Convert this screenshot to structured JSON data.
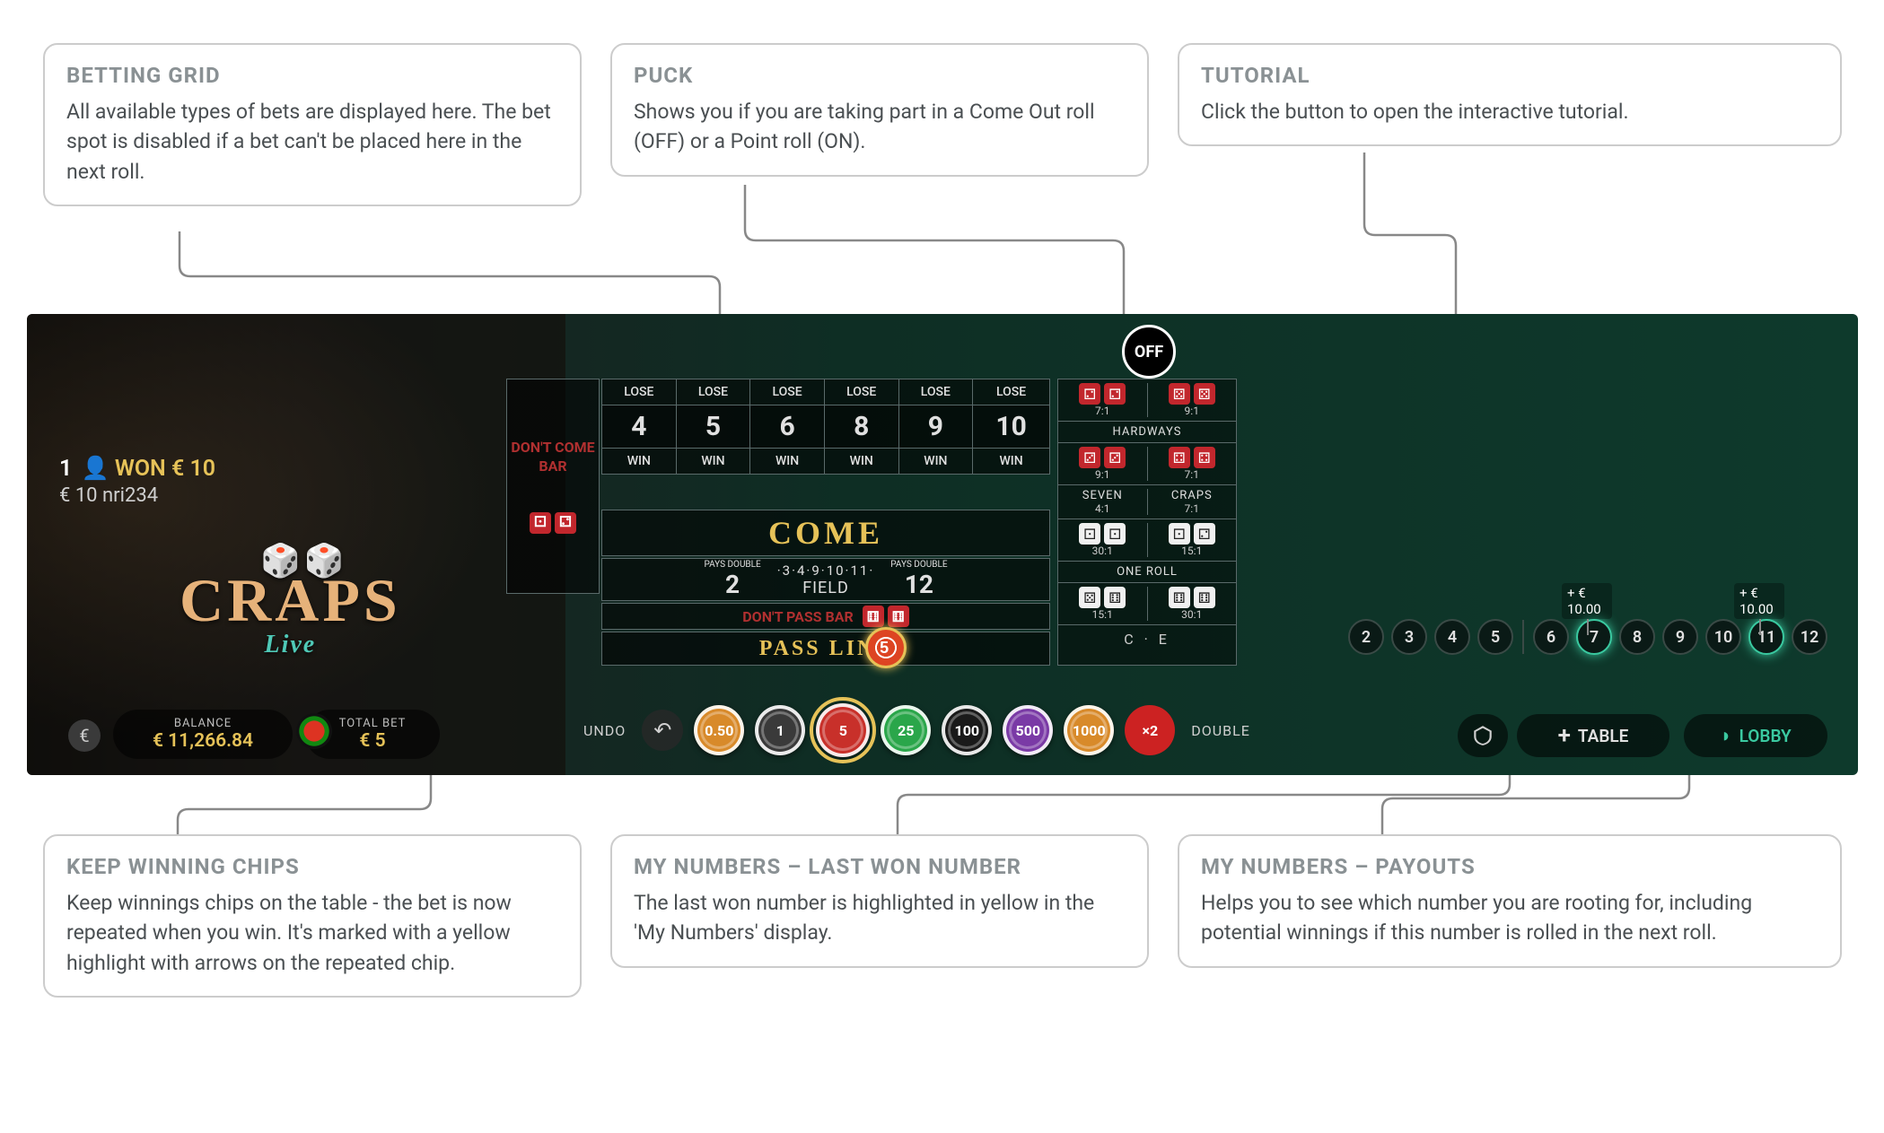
{
  "callouts": {
    "betting_grid": {
      "title": "BETTING GRID",
      "body": "All available types of bets are displayed here. The bet spot is disabled if a bet can't be placed here in the next roll."
    },
    "puck": {
      "title": "PUCK",
      "body": "Shows you if you are taking part in a Come Out roll (OFF) or a Point roll (ON)."
    },
    "tutorial": {
      "title": "TUTORIAL",
      "body": "Click the button to open the interactive tutorial."
    },
    "keep_winning": {
      "title": "KEEP WINNING CHIPS",
      "body": "Keep winnings chips on the table - the bet is now repeated when you win. It's marked with a yellow highlight with arrows on the repeated chip."
    },
    "last_won": {
      "title": "MY NUMBERS – LAST WON NUMBER",
      "body": "The last won number is highlighted in yellow in the 'My Numbers' display."
    },
    "payouts": {
      "title": "MY NUMBERS – PAYOUTS",
      "body": "Helps you to see which number you are rooting for, including potential winnings if this number is rolled in the next roll."
    }
  },
  "game": {
    "win_text": "WON € 10",
    "win_count": "1",
    "player_id": "€ 10 nri234",
    "logo": "CRAPS",
    "logo_sub": "Live",
    "balance_label": "BALANCE",
    "balance_value": "€ 11,266.84",
    "totalbet_label": "TOTAL BET",
    "totalbet_value": "€ 5",
    "puck_state": "OFF",
    "undo_label": "UNDO",
    "double_label": "DOUBLE",
    "double_x": "×2",
    "table_btn": "TABLE",
    "lobby_btn": "LOBBY",
    "dont_come": "DON'T COME BAR",
    "come_label": "COME",
    "field_nums": "·3·4·9·10·11·",
    "field_label": "FIELD",
    "pays_double": "PAYS DOUBLE",
    "field_2": "2",
    "field_12": "12",
    "dont_pass": "DON'T PASS BAR",
    "pass_line": "PASS LINE",
    "pass_chip": "5",
    "grid": {
      "numbers": [
        "4",
        "5",
        "6",
        "8",
        "9",
        "10"
      ],
      "lose": "LOSE",
      "win": "WIN"
    },
    "side": {
      "hardways": "HARDWAYS",
      "one_roll": "ONE ROLL",
      "seven": "SEVEN",
      "seven_pay": "4:1",
      "craps": "CRAPS",
      "craps_pay": "7:1",
      "ce": "C · E",
      "r71": "7:1",
      "r91": "9:1",
      "r151": "15:1",
      "r301": "30:1"
    },
    "chips": [
      {
        "label": "0.50",
        "bg": "#d88a2a"
      },
      {
        "label": "1",
        "bg": "#3a3a3a"
      },
      {
        "label": "5",
        "bg": "#c8302a",
        "selected": true
      },
      {
        "label": "25",
        "bg": "#2aa64a"
      },
      {
        "label": "100",
        "bg": "#1a1a1a"
      },
      {
        "label": "500",
        "bg": "#7a3aa6"
      },
      {
        "label": "1000",
        "bg": "#d88a2a"
      }
    ],
    "my_numbers": {
      "left_group": [
        "2",
        "3",
        "4",
        "5"
      ],
      "right_group": [
        "6",
        "7",
        "8",
        "9",
        "10",
        "11",
        "12"
      ],
      "highlighted": [
        "7",
        "11"
      ],
      "payout_7": "+ € 10.00",
      "payout_11": "+ € 10.00"
    }
  },
  "colors": {
    "callout_border": "#cccccc",
    "callout_title": "#8a9194",
    "callout_body": "#4a4f52",
    "connector": "#888888",
    "gold": "#e6c258",
    "teal": "#3ac9a0",
    "red": "#c2272d"
  }
}
